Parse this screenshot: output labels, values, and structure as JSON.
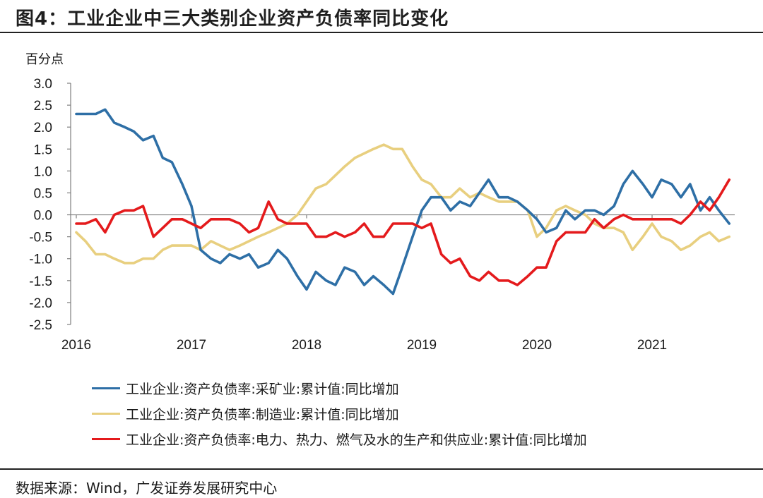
{
  "figure": {
    "title": "图4：工业企业中三大类别企业资产负债率同比变化",
    "unit_label": "百分点",
    "source": "数据来源：Wind，广发证券发展研究中心"
  },
  "chart_data": {
    "type": "line",
    "title": "",
    "xlabel": "",
    "ylabel": "百分点",
    "ylim": [
      -2.5,
      3.0
    ],
    "yticks": [
      "3.0",
      "2.5",
      "2.0",
      "1.5",
      "1.0",
      "0.5",
      "0.0",
      "-0.5",
      "-1.0",
      "-1.5",
      "-2.0",
      "-2.5"
    ],
    "xticks": [
      "2016",
      "2017",
      "2018",
      "2019",
      "2020",
      "2021"
    ],
    "grid": false,
    "legend_position": "bottom",
    "x": [
      2016.0,
      2016.08,
      2016.17,
      2016.25,
      2016.33,
      2016.42,
      2016.5,
      2016.58,
      2016.67,
      2016.75,
      2016.83,
      2016.92,
      2017.0,
      2017.08,
      2017.17,
      2017.25,
      2017.33,
      2017.42,
      2017.5,
      2017.58,
      2017.67,
      2017.75,
      2017.83,
      2017.92,
      2018.0,
      2018.08,
      2018.17,
      2018.25,
      2018.33,
      2018.42,
      2018.5,
      2018.58,
      2018.67,
      2018.75,
      2018.83,
      2018.92,
      2019.0,
      2019.08,
      2019.17,
      2019.25,
      2019.33,
      2019.42,
      2019.5,
      2019.58,
      2019.67,
      2019.75,
      2019.83,
      2019.92,
      2020.0,
      2020.08,
      2020.17,
      2020.25,
      2020.33,
      2020.42,
      2020.5,
      2020.58,
      2020.67,
      2020.75,
      2020.83,
      2020.92,
      2021.0,
      2021.08,
      2021.17,
      2021.25,
      2021.33,
      2021.42,
      2021.5,
      2021.58,
      2021.67
    ],
    "series": [
      {
        "name": "工业企业:资产负债率:采矿业:累计值:同比增加",
        "color": "#2e6fa6",
        "values": [
          2.3,
          2.3,
          2.3,
          2.4,
          2.1,
          2.0,
          1.9,
          1.7,
          1.8,
          1.3,
          1.2,
          0.7,
          0.2,
          -0.8,
          -1.0,
          -1.1,
          -0.9,
          -1.0,
          -0.9,
          -1.2,
          -1.1,
          -0.8,
          -1.0,
          -1.4,
          -1.7,
          -1.3,
          -1.5,
          -1.6,
          -1.2,
          -1.3,
          -1.6,
          -1.4,
          -1.6,
          -1.8,
          -1.2,
          -0.5,
          0.1,
          0.4,
          0.4,
          0.1,
          0.3,
          0.2,
          0.5,
          0.8,
          0.4,
          0.4,
          0.3,
          0.1,
          -0.1,
          -0.4,
          -0.3,
          0.1,
          -0.1,
          0.1,
          0.1,
          0.0,
          0.2,
          0.7,
          1.0,
          0.7,
          0.4,
          0.8,
          0.7,
          0.4,
          0.7,
          0.1,
          0.4,
          0.1,
          -0.2
        ]
      },
      {
        "name": "工业企业:资产负债率:制造业:累计值:同比增加",
        "color": "#e8cf7f",
        "values": [
          -0.4,
          -0.6,
          -0.9,
          -0.9,
          -1.0,
          -1.1,
          -1.1,
          -1.0,
          -1.0,
          -0.8,
          -0.7,
          -0.7,
          -0.7,
          -0.8,
          -0.6,
          -0.7,
          -0.8,
          -0.7,
          -0.6,
          -0.5,
          -0.4,
          -0.3,
          -0.2,
          0.0,
          0.3,
          0.6,
          0.7,
          0.9,
          1.1,
          1.3,
          1.4,
          1.5,
          1.6,
          1.5,
          1.5,
          1.1,
          0.8,
          0.7,
          0.4,
          0.4,
          0.6,
          0.4,
          0.5,
          0.4,
          0.3,
          0.3,
          0.3,
          0.1,
          -0.5,
          -0.3,
          0.1,
          0.2,
          0.1,
          0.0,
          -0.2,
          -0.3,
          -0.3,
          -0.4,
          -0.8,
          -0.5,
          -0.2,
          -0.5,
          -0.6,
          -0.8,
          -0.7,
          -0.5,
          -0.4,
          -0.6,
          -0.5
        ]
      },
      {
        "name": "工业企业:资产负债率:电力、热力、燃气及水的生产和供应业:累计值:同比增加",
        "color": "#e41a1c",
        "values": [
          -0.2,
          -0.2,
          -0.1,
          -0.4,
          0.0,
          0.1,
          0.1,
          0.2,
          -0.5,
          -0.3,
          -0.1,
          -0.1,
          -0.2,
          -0.3,
          -0.1,
          -0.1,
          -0.1,
          -0.2,
          -0.4,
          -0.3,
          0.3,
          -0.1,
          -0.2,
          -0.2,
          -0.2,
          -0.5,
          -0.5,
          -0.4,
          -0.5,
          -0.4,
          -0.2,
          -0.5,
          -0.5,
          -0.2,
          -0.2,
          -0.2,
          -0.3,
          -0.2,
          -0.9,
          -1.1,
          -1.0,
          -1.4,
          -1.5,
          -1.3,
          -1.5,
          -1.5,
          -1.6,
          -1.4,
          -1.2,
          -1.2,
          -0.6,
          -0.4,
          -0.4,
          -0.4,
          -0.1,
          -0.3,
          -0.1,
          0.0,
          -0.1,
          -0.1,
          -0.1,
          -0.1,
          -0.1,
          -0.2,
          0.0,
          0.3,
          0.1,
          0.4,
          0.8
        ]
      }
    ]
  }
}
